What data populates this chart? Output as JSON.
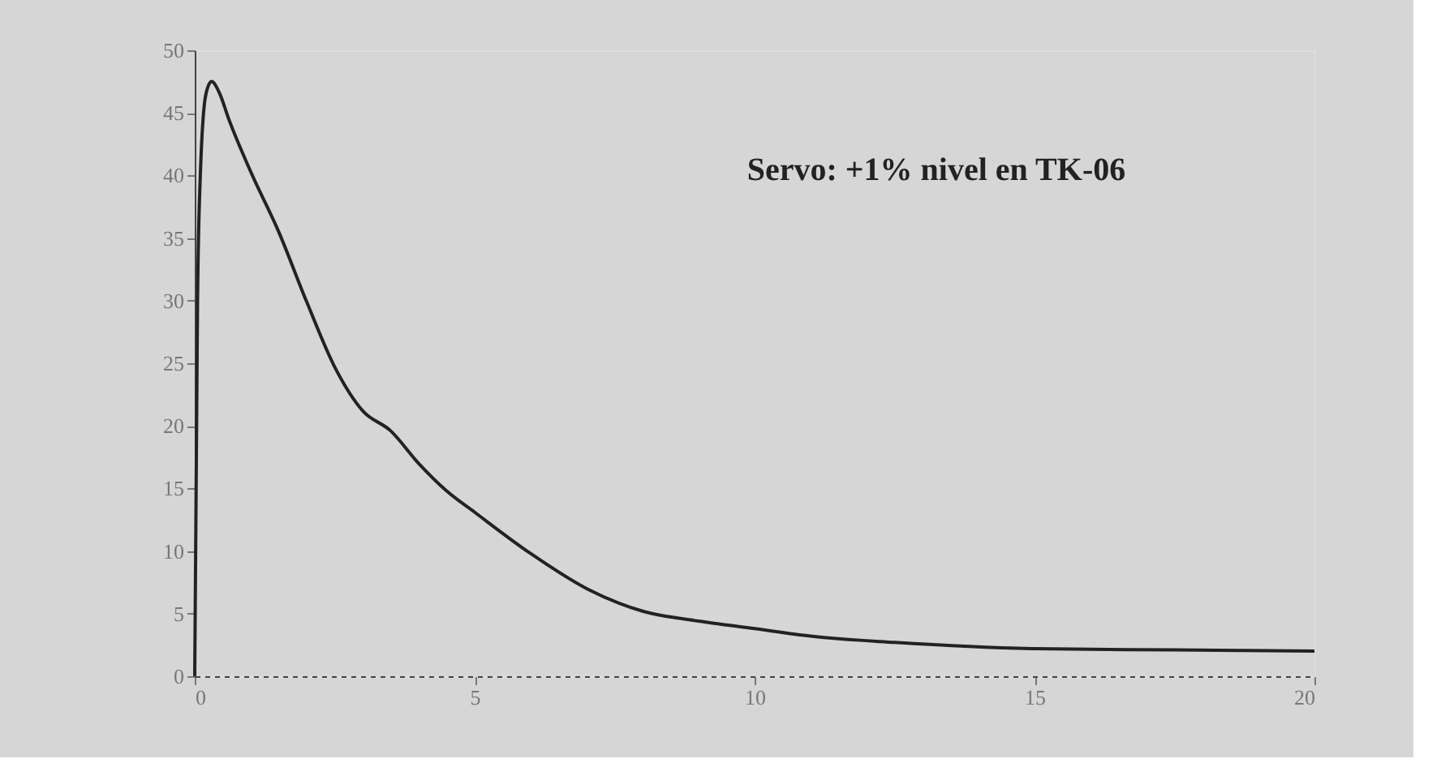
{
  "chart_data": {
    "type": "line",
    "annotations": [
      "Servo: +1% nivel en TK-06"
    ],
    "x": [
      0,
      0.05,
      0.1,
      0.2,
      0.3,
      0.45,
      0.6,
      1,
      1.5,
      2,
      2.5,
      3,
      3.5,
      4,
      4.5,
      5,
      6,
      7,
      8,
      9,
      10,
      11,
      12.5,
      15,
      17.5,
      20
    ],
    "series": [
      {
        "color": "#222222",
        "values": [
          0,
          30,
          40,
          46.5,
          47.5,
          46.5,
          44.6,
          40.3,
          35.5,
          29.9,
          24.7,
          21.2,
          19.6,
          17,
          14.8,
          13.1,
          9.8,
          7,
          5.2,
          4.4,
          3.8,
          3.2,
          2.7,
          2.2,
          2.1,
          2.0
        ]
      }
    ],
    "xlim": [
      0,
      20
    ],
    "xticks": [
      0,
      5,
      10,
      15,
      20
    ],
    "ylim": [
      0,
      50
    ],
    "yticks": [
      0,
      5,
      10,
      15,
      20,
      25,
      30,
      35,
      40,
      45,
      50
    ],
    "grid": false,
    "line_style": "solid",
    "marker": "none"
  }
}
